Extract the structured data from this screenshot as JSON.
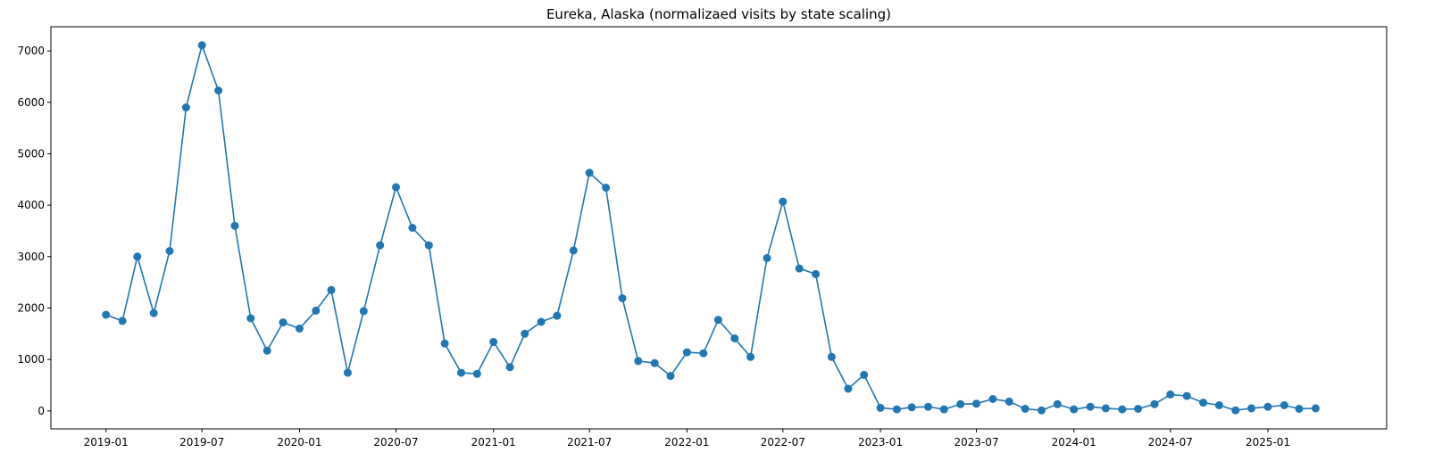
{
  "chart_data": {
    "type": "line",
    "title": "Eureka, Alaska (normalizaed visits by state scaling)",
    "xlabel": "",
    "ylabel": "",
    "grid": false,
    "legend": "none",
    "color": "#1f77b4",
    "marker": "circle",
    "x_start": "2019-01",
    "x_ticks": [
      "2019-01",
      "2019-07",
      "2020-01",
      "2020-07",
      "2021-01",
      "2021-07",
      "2022-01",
      "2022-07",
      "2023-01",
      "2023-07",
      "2024-01",
      "2024-07",
      "2025-01"
    ],
    "y_ticks": [
      0,
      1000,
      2000,
      3000,
      4000,
      5000,
      6000,
      7000
    ],
    "xlim": [
      "2018-09-19",
      "2025-08-13"
    ],
    "ylim": [
      -350,
      7470
    ],
    "x": [
      "2019-01",
      "2019-02",
      "2019-03",
      "2019-04",
      "2019-05",
      "2019-06",
      "2019-07",
      "2019-08",
      "2019-09",
      "2019-10",
      "2019-11",
      "2019-12",
      "2020-01",
      "2020-02",
      "2020-03",
      "2020-04",
      "2020-05",
      "2020-06",
      "2020-07",
      "2020-08",
      "2020-09",
      "2020-10",
      "2020-11",
      "2020-12",
      "2021-01",
      "2021-02",
      "2021-03",
      "2021-04",
      "2021-05",
      "2021-06",
      "2021-07",
      "2021-08",
      "2021-09",
      "2021-10",
      "2021-11",
      "2021-12",
      "2022-01",
      "2022-02",
      "2022-03",
      "2022-04",
      "2022-05",
      "2022-06",
      "2022-07",
      "2022-08",
      "2022-09",
      "2022-10",
      "2022-11",
      "2022-12",
      "2023-01",
      "2023-02",
      "2023-03",
      "2023-04",
      "2023-05",
      "2023-06",
      "2023-07",
      "2023-08",
      "2023-09",
      "2023-10",
      "2023-11",
      "2023-12",
      "2024-01",
      "2024-02",
      "2024-03",
      "2024-04",
      "2024-05",
      "2024-06",
      "2024-07",
      "2024-08",
      "2024-09",
      "2024-10",
      "2024-11",
      "2024-12",
      "2025-01",
      "2025-02",
      "2025-03",
      "2025-04"
    ],
    "values": [
      1870,
      1750,
      3000,
      1900,
      3110,
      5900,
      7110,
      6230,
      3600,
      1800,
      1170,
      1720,
      1600,
      1950,
      2350,
      740,
      1940,
      3220,
      4350,
      3560,
      3220,
      1310,
      740,
      720,
      1340,
      850,
      1500,
      1730,
      1850,
      3120,
      4630,
      4340,
      2190,
      970,
      930,
      680,
      1140,
      1120,
      1770,
      1410,
      1050,
      2970,
      4070,
      2770,
      2660,
      1050,
      430,
      700,
      60,
      30,
      70,
      80,
      30,
      130,
      140,
      230,
      180,
      40,
      10,
      130,
      30,
      80,
      50,
      30,
      40,
      130,
      320,
      290,
      160,
      110,
      10,
      50,
      80,
      110,
      40,
      50
    ]
  }
}
